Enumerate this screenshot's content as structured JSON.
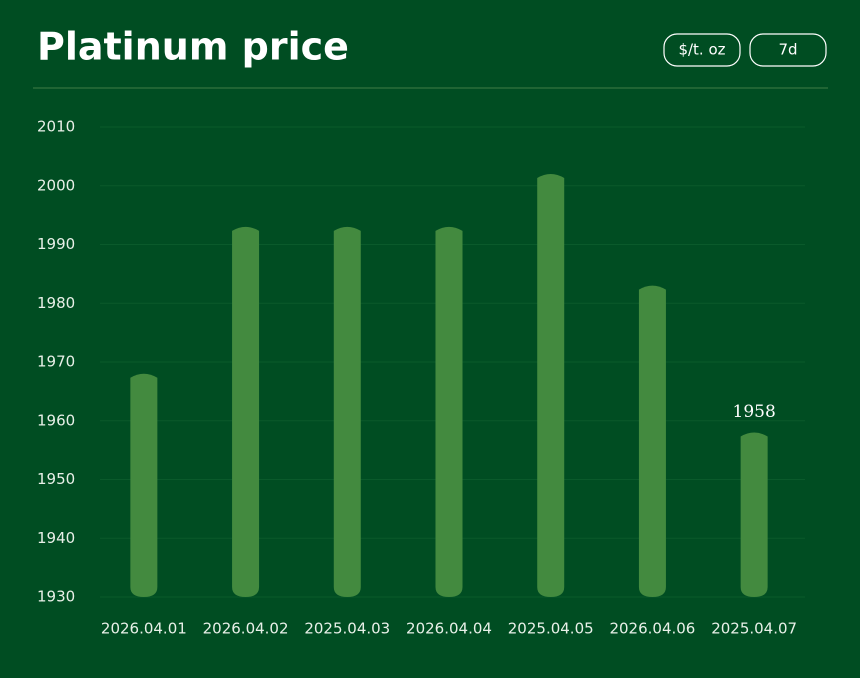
{
  "chart_data": {
    "type": "bar",
    "title": "Platinum price",
    "controls": [
      "$/t. oz",
      "7d"
    ],
    "categories": [
      "2026.04.01",
      "2026.04.02",
      "2025.04.03",
      "2026.04.04",
      "2025.04.05",
      "2026.04.06",
      "2025.04.07"
    ],
    "values": [
      1968,
      1993,
      1993,
      1993,
      2002,
      1983,
      1958
    ],
    "value_labels": [
      null,
      null,
      null,
      null,
      null,
      null,
      "1958"
    ],
    "color": "#438a3f",
    "ylim": [
      1930,
      2010
    ],
    "yticks": [
      1930,
      1940,
      1950,
      1960,
      1970,
      1980,
      1990,
      2000,
      2010
    ],
    "grid": true
  }
}
